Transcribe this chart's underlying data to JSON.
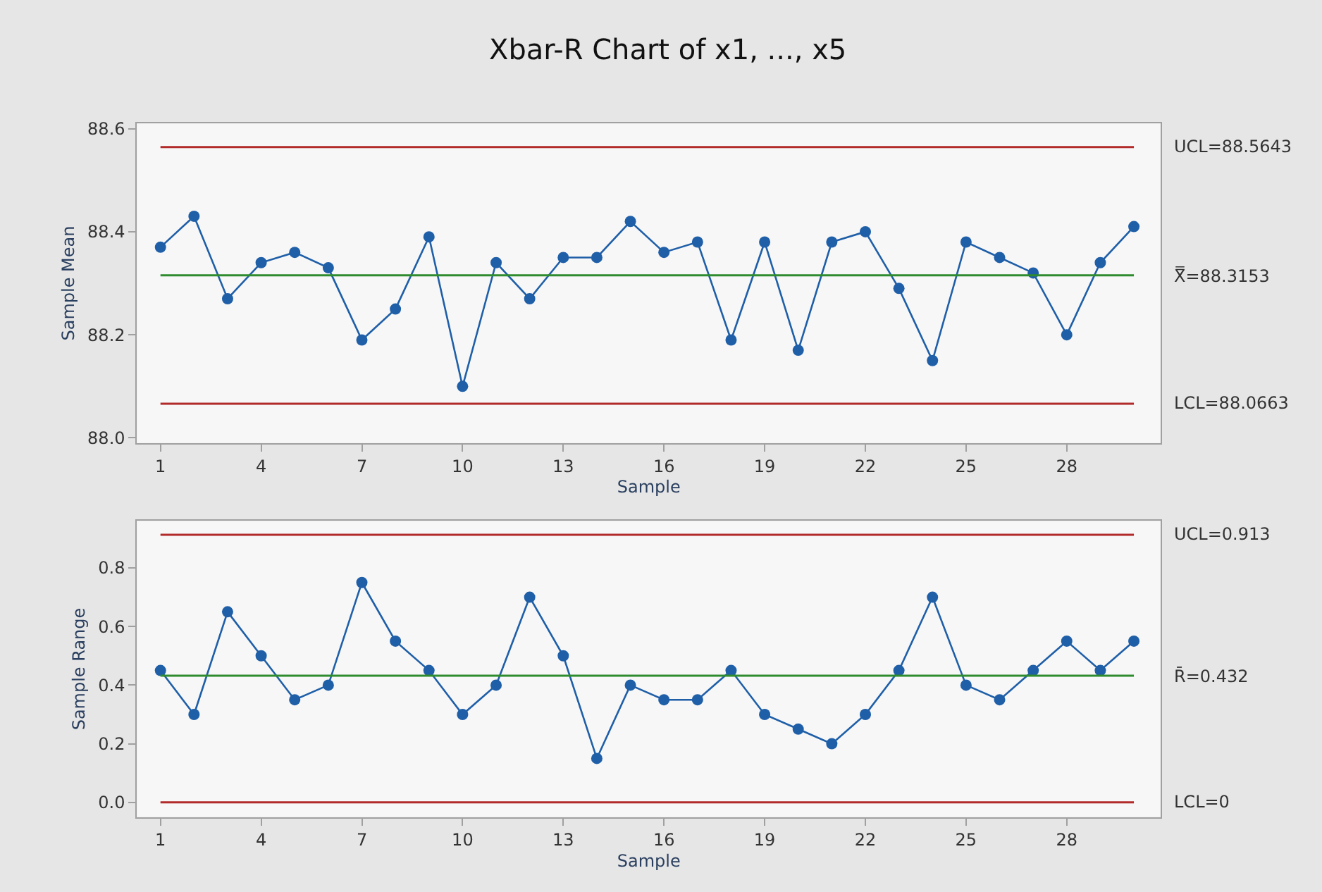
{
  "chart_data": [
    {
      "type": "line",
      "title": "Xbar-R Chart of x1, ..., x5",
      "xlabel": "Sample",
      "ylabel": "Sample Mean",
      "marker": "circle",
      "line_style": "solid",
      "grid": false,
      "x": [
        1,
        2,
        3,
        4,
        5,
        6,
        7,
        8,
        9,
        10,
        11,
        12,
        13,
        14,
        15,
        16,
        17,
        18,
        19,
        20,
        21,
        22,
        23,
        24,
        25,
        26,
        27,
        28,
        29,
        30
      ],
      "series": [
        {
          "color": "#1f5fa8",
          "values": [
            88.37,
            88.43,
            88.27,
            88.34,
            88.36,
            88.33,
            88.19,
            88.25,
            88.39,
            88.1,
            88.34,
            88.27,
            88.35,
            88.35,
            88.42,
            88.36,
            88.38,
            88.19,
            88.38,
            88.17,
            88.38,
            88.4,
            88.29,
            88.15,
            88.38,
            88.35,
            88.32,
            88.2,
            88.34,
            88.41
          ]
        }
      ],
      "xlim": [
        0.3,
        30.8
      ],
      "xticks": [
        1,
        4,
        7,
        10,
        13,
        16,
        19,
        22,
        25,
        28
      ],
      "ylim": [
        87.99,
        88.61
      ],
      "yticks": [
        {
          "value": 88.0,
          "label": "88.0"
        },
        88.2,
        88.4,
        {
          "value": 88.6,
          "label": "88.6"
        }
      ],
      "ref_lines": [
        {
          "axis": "y",
          "value": 88.5643,
          "label": "UCL=88.5643",
          "color": "#b22a2a"
        },
        {
          "axis": "y",
          "value": 88.3153,
          "label": "X̿=88.3153",
          "color": "#2e8b2e"
        },
        {
          "axis": "y",
          "value": 88.0663,
          "label": "LCL=88.0663",
          "color": "#b22a2a"
        }
      ]
    },
    {
      "type": "line",
      "xlabel": "Sample",
      "ylabel": "Sample Range",
      "marker": "circle",
      "line_style": "solid",
      "grid": false,
      "x": [
        1,
        2,
        3,
        4,
        5,
        6,
        7,
        8,
        9,
        10,
        11,
        12,
        13,
        14,
        15,
        16,
        17,
        18,
        19,
        20,
        21,
        22,
        23,
        24,
        25,
        26,
        27,
        28,
        29,
        30
      ],
      "series": [
        {
          "color": "#1f5fa8",
          "values": [
            0.45,
            0.3,
            0.65,
            0.5,
            0.35,
            0.4,
            0.75,
            0.55,
            0.45,
            0.3,
            0.4,
            0.7,
            0.5,
            0.15,
            0.4,
            0.35,
            0.35,
            0.45,
            0.3,
            0.25,
            0.2,
            0.3,
            0.45,
            0.7,
            0.4,
            0.35,
            0.45,
            0.55,
            0.45,
            0.55
          ]
        }
      ],
      "xlim": [
        0.3,
        30.8
      ],
      "xticks": [
        1,
        4,
        7,
        10,
        13,
        16,
        19,
        22,
        25,
        28
      ],
      "ylim": [
        -0.05,
        0.96
      ],
      "yticks": [
        {
          "value": 0,
          "label": "0.0"
        },
        0.2,
        0.4,
        0.6,
        0.8
      ],
      "ref_lines": [
        {
          "axis": "y",
          "value": 0.913,
          "label": "UCL=0.913",
          "color": "#b22a2a"
        },
        {
          "axis": "y",
          "value": 0.432,
          "label": "R̄=0.432",
          "color": "#2e8b2e"
        },
        {
          "axis": "y",
          "value": 0,
          "label": "LCL=0",
          "color": "#b22a2a"
        }
      ]
    }
  ]
}
